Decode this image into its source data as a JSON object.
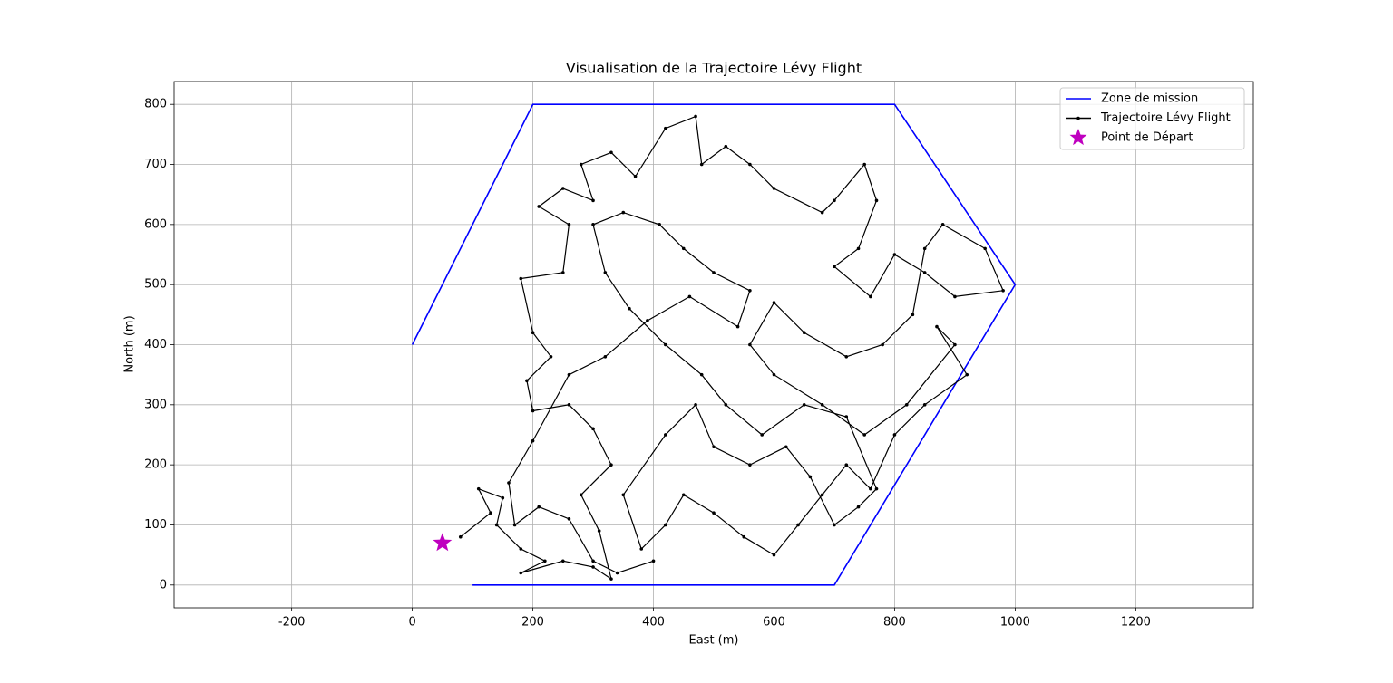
{
  "chart_data": {
    "type": "line",
    "title": "Visualisation de la Trajectoire Lévy Flight",
    "x_label": "East (m)",
    "y_label": "North (m)",
    "xlim": [
      -395,
      1395
    ],
    "ylim": [
      -38,
      838
    ],
    "xticks": [
      -200,
      0,
      200,
      400,
      600,
      800,
      1000,
      1200
    ],
    "yticks": [
      0,
      100,
      200,
      300,
      400,
      500,
      600,
      700,
      800
    ],
    "grid": true,
    "legend": "upper right",
    "series": [
      {
        "name": "Zone de mission",
        "color": "#0000ff",
        "marker": "none",
        "x": [
          100,
          700,
          1000,
          800,
          200,
          0
        ],
        "y": [
          0,
          0,
          500,
          800,
          800,
          400
        ]
      },
      {
        "name": "Trajectoire Lévy Flight",
        "color": "#000000",
        "marker": "dot",
        "x": [
          80,
          130,
          110,
          150,
          140,
          180,
          220,
          180,
          250,
          300,
          330,
          310,
          280,
          330,
          300,
          260,
          200,
          190,
          230,
          200,
          180,
          250,
          260,
          210,
          250,
          300,
          280,
          330,
          370,
          420,
          470,
          480,
          520,
          560,
          600,
          680,
          700,
          750,
          770,
          740,
          700,
          760,
          800,
          850,
          900,
          980,
          950,
          880,
          850,
          830,
          780,
          720,
          650,
          600,
          560,
          600,
          680,
          750,
          820,
          900,
          870,
          920,
          850,
          800,
          760,
          720,
          680,
          640,
          600,
          550,
          500,
          450,
          420,
          380,
          350,
          420,
          470,
          500,
          560,
          620,
          660,
          700,
          740,
          770,
          720,
          650,
          580,
          520,
          480,
          420,
          360,
          320,
          300,
          350,
          410,
          450,
          500,
          560,
          540,
          460,
          390,
          320,
          260,
          200,
          160,
          170,
          210,
          260,
          300,
          340,
          400
        ],
        "y": [
          80,
          120,
          160,
          145,
          100,
          60,
          40,
          20,
          40,
          30,
          10,
          90,
          150,
          200,
          260,
          300,
          290,
          340,
          380,
          420,
          510,
          520,
          600,
          630,
          660,
          640,
          700,
          720,
          680,
          760,
          780,
          700,
          730,
          700,
          660,
          620,
          640,
          700,
          640,
          560,
          530,
          480,
          550,
          520,
          480,
          490,
          560,
          600,
          560,
          450,
          400,
          380,
          420,
          470,
          400,
          350,
          300,
          250,
          300,
          400,
          430,
          350,
          300,
          250,
          160,
          200,
          150,
          100,
          50,
          80,
          120,
          150,
          100,
          60,
          150,
          250,
          300,
          230,
          200,
          230,
          180,
          100,
          130,
          160,
          280,
          300,
          250,
          300,
          350,
          400,
          460,
          520,
          600,
          620,
          600,
          560,
          520,
          490,
          430,
          480,
          440,
          380,
          350,
          240,
          170,
          100,
          130,
          110,
          40,
          20,
          40
        ]
      },
      {
        "name": "Point de Départ",
        "color": "#bf00bf",
        "marker": "star",
        "x": [
          50
        ],
        "y": [
          70
        ]
      }
    ]
  }
}
